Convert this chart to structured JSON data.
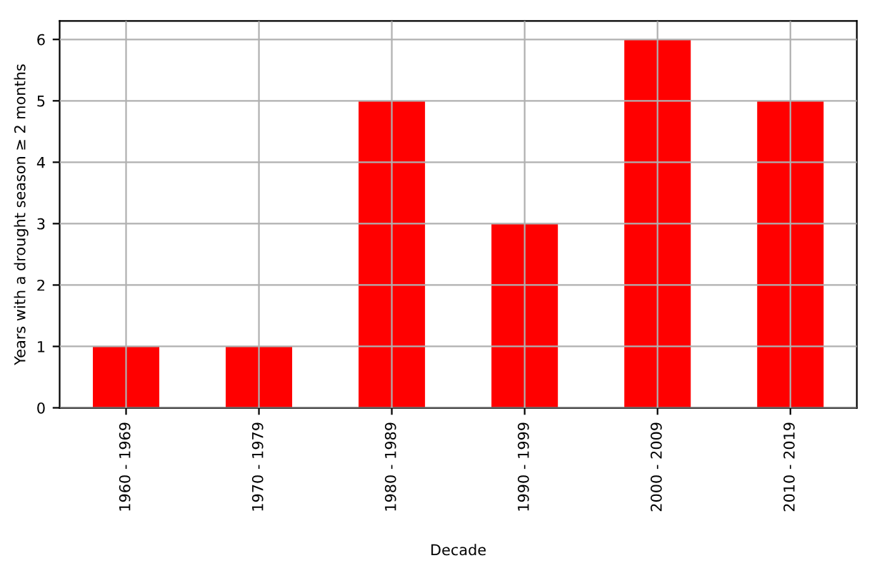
{
  "chart_data": {
    "type": "bar",
    "xlabel": "Decade",
    "ylabel": "Years with a drought season ≥ 2 months",
    "categories": [
      "1960 - 1969",
      "1970 - 1979",
      "1980 - 1989",
      "1990 - 1999",
      "2000 - 2009",
      "2010 - 2019"
    ],
    "values": [
      1,
      1,
      5,
      3,
      6,
      5
    ],
    "color": "#ff0000",
    "ylim": [
      0,
      6.3
    ],
    "yticks": [
      0,
      1,
      2,
      3,
      4,
      5,
      6
    ],
    "grid": true
  }
}
